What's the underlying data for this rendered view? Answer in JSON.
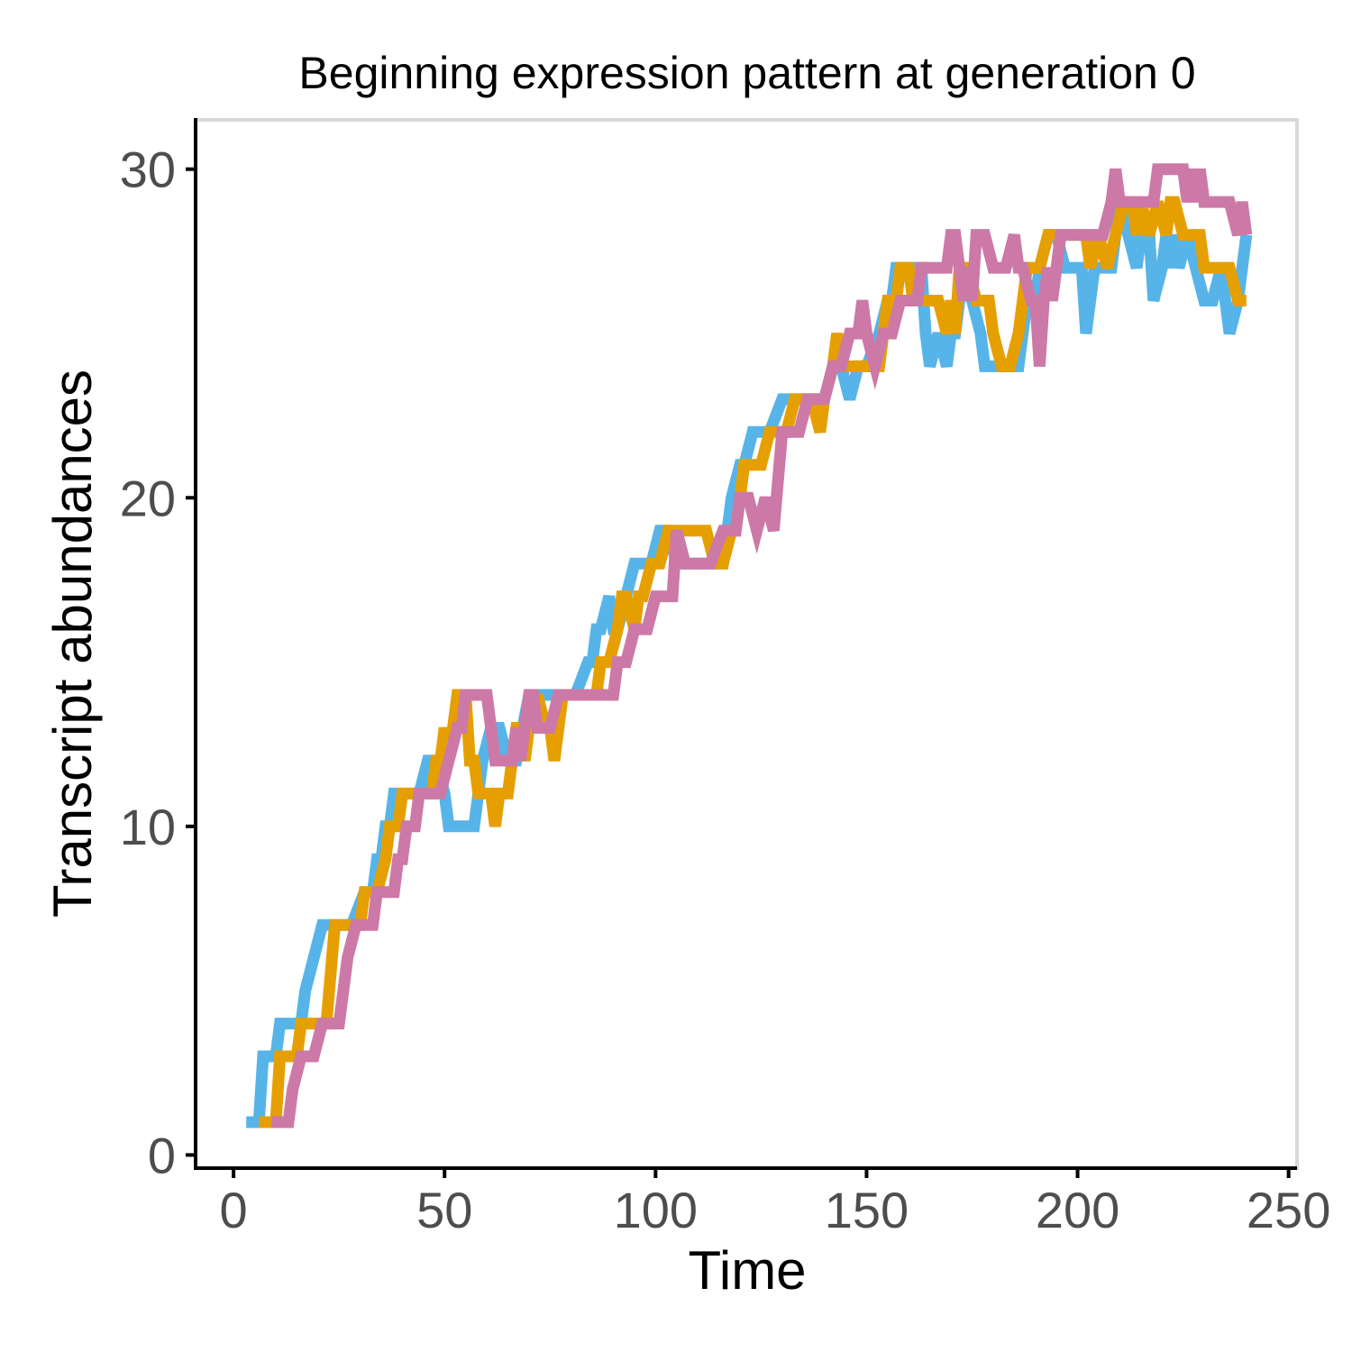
{
  "chart_data": {
    "type": "line",
    "title": "Beginning expression pattern at generation 0",
    "xlabel": "Time",
    "ylabel": "Transcript abundances",
    "xlim": [
      -9,
      252
    ],
    "ylim": [
      -0.4,
      31.5
    ],
    "x_ticks": [
      0,
      50,
      100,
      150,
      200,
      250
    ],
    "y_ticks": [
      0,
      10,
      20,
      30
    ],
    "x_tick_labels": [
      "0",
      "50",
      "100",
      "150",
      "200",
      "250"
    ],
    "y_tick_labels": [
      "0",
      "10",
      "20",
      "30"
    ],
    "grid": false,
    "legend": "none",
    "colors": {
      "series_1": "#56b4e9",
      "series_2": "#e69f00",
      "series_3": "#cc79a7",
      "axis_line": "#000000",
      "panel_border": "#d9d9d9",
      "tick_label": "#4d4d4d"
    },
    "series": [
      {
        "color": "#56b4e9",
        "x": [
          3,
          6,
          7,
          10,
          11,
          14,
          16,
          17,
          19,
          21,
          24,
          27,
          28,
          31,
          32,
          33,
          34,
          35,
          36,
          37,
          38,
          40,
          42,
          44,
          46,
          47,
          48,
          50,
          51,
          53,
          54,
          55,
          57,
          59,
          61,
          63,
          65,
          67,
          70,
          71,
          74,
          75,
          78,
          81,
          84,
          85,
          86,
          87,
          89,
          90,
          91,
          93,
          95,
          97,
          98,
          99,
          101,
          103,
          105,
          107,
          109,
          111,
          114,
          116,
          117,
          118,
          120,
          121,
          123,
          125,
          127,
          130,
          131,
          133,
          137,
          140,
          142,
          144,
          146,
          148,
          150,
          153,
          155,
          156,
          157,
          158,
          161,
          162,
          163,
          164,
          165,
          167,
          169,
          170,
          171,
          173,
          175,
          177,
          178,
          180,
          183,
          186,
          188,
          190,
          191,
          193,
          195,
          197,
          198,
          201,
          202,
          204,
          205,
          208,
          210,
          212,
          214,
          215,
          217,
          218,
          220,
          221,
          222,
          223,
          224,
          226,
          228,
          230,
          232,
          234,
          236,
          238,
          240
        ],
        "y": [
          1,
          1,
          3,
          3,
          4,
          4,
          4,
          5,
          6,
          7,
          7,
          7,
          7,
          8,
          8,
          8,
          9,
          9,
          10,
          10,
          11,
          11,
          11,
          11,
          12,
          12,
          12,
          11,
          10,
          10,
          10,
          10,
          10,
          12,
          13,
          13,
          12,
          12,
          14,
          14,
          14,
          14,
          14,
          14,
          15,
          15,
          16,
          16,
          17,
          16,
          16,
          17,
          18,
          18,
          18,
          18,
          19,
          19,
          18,
          18,
          18,
          18,
          18,
          18,
          19,
          20,
          21,
          21,
          22,
          22,
          22,
          23,
          23,
          23,
          23,
          23,
          24,
          24,
          23,
          24,
          24,
          25,
          26,
          26,
          27,
          27,
          27,
          27,
          27,
          25,
          24,
          25,
          24,
          25,
          25,
          27,
          26,
          25,
          24,
          24,
          24,
          24,
          26,
          26,
          27,
          28,
          28,
          27,
          27,
          27,
          25,
          27,
          27,
          27,
          29,
          28,
          27,
          28,
          28,
          26,
          27,
          28,
          27,
          28,
          27,
          28,
          27,
          26,
          26,
          27,
          25,
          26,
          28
        ]
      },
      {
        "color": "#e69f00",
        "x": [
          6,
          9,
          10,
          11,
          14,
          15,
          16,
          19,
          22,
          24,
          27,
          30,
          31,
          32,
          34,
          36,
          37,
          38,
          39,
          40,
          41,
          43,
          44,
          47,
          48,
          49,
          50,
          51,
          52,
          53,
          55,
          56,
          57,
          58,
          60,
          61,
          62,
          63,
          64,
          65,
          66,
          67,
          68,
          69,
          70,
          72,
          74,
          75,
          76,
          77,
          78,
          80,
          83,
          86,
          87,
          89,
          91,
          92,
          93,
          95,
          96,
          97,
          99,
          101,
          103,
          105,
          107,
          109,
          111,
          112,
          114,
          116,
          118,
          119,
          120,
          121,
          123,
          125,
          127,
          128,
          130,
          131,
          133,
          135,
          136,
          137,
          139,
          140,
          142,
          143,
          144,
          145,
          147,
          149,
          150,
          153,
          155,
          157,
          158,
          160,
          161,
          162,
          165,
          167,
          169,
          170,
          171,
          172,
          174,
          176,
          178,
          179,
          180,
          182,
          184,
          186,
          188,
          191,
          193,
          196,
          199,
          202,
          203,
          205,
          207,
          209,
          211,
          213,
          214,
          215,
          217,
          219,
          221,
          222,
          223,
          225,
          227,
          229,
          230,
          232,
          234,
          236,
          238,
          240
        ],
        "y": [
          1,
          1,
          1,
          3,
          3,
          3,
          4,
          4,
          4,
          7,
          7,
          7,
          8,
          8,
          8,
          9,
          10,
          10,
          10,
          11,
          11,
          11,
          11,
          11,
          12,
          12,
          13,
          12,
          13,
          14,
          14,
          12,
          12,
          11,
          11,
          11,
          10,
          11,
          11,
          11,
          12,
          13,
          13,
          12,
          13,
          14,
          13,
          13,
          12,
          13,
          14,
          14,
          14,
          14,
          15,
          15,
          16,
          17,
          17,
          16,
          17,
          17,
          18,
          18,
          19,
          19,
          19,
          19,
          19,
          19,
          18,
          18,
          19,
          19,
          20,
          21,
          21,
          21,
          22,
          22,
          22,
          22,
          23,
          23,
          23,
          23,
          22,
          23,
          24,
          25,
          24,
          24,
          24,
          24,
          24,
          24,
          26,
          26,
          27,
          27,
          26,
          26,
          26,
          26,
          25,
          26,
          25,
          27,
          27,
          26,
          26,
          26,
          25,
          24,
          24,
          25,
          27,
          27,
          28,
          28,
          28,
          28,
          27,
          28,
          27,
          28,
          29,
          29,
          28,
          29,
          28,
          29,
          28,
          29,
          29,
          28,
          28,
          28,
          27,
          27,
          27,
          27,
          26,
          26
        ]
      },
      {
        "color": "#cc79a7",
        "x": [
          9,
          12,
          13,
          14,
          16,
          18,
          19,
          21,
          23,
          25,
          27,
          29,
          32,
          33,
          34,
          36,
          38,
          39,
          40,
          41,
          43,
          44,
          46,
          48,
          49,
          51,
          53,
          54,
          55,
          57,
          60,
          62,
          63,
          64,
          66,
          67,
          68,
          69,
          70,
          71,
          72,
          73,
          74,
          75,
          77,
          79,
          81,
          83,
          87,
          90,
          91,
          93,
          95,
          98,
          100,
          102,
          104,
          105,
          107,
          109,
          111,
          113,
          116,
          117,
          119,
          120,
          122,
          124,
          126,
          128,
          130,
          132,
          134,
          136,
          138,
          140,
          142,
          144,
          146,
          148,
          149,
          150,
          152,
          154,
          156,
          158,
          160,
          162,
          163,
          165,
          167,
          169,
          170,
          171,
          172,
          173,
          174,
          175,
          176,
          178,
          180,
          181,
          183,
          185,
          186,
          187,
          189,
          190,
          191,
          192,
          193,
          194,
          196,
          198,
          200,
          202,
          204,
          206,
          208,
          209,
          210,
          211,
          212,
          214,
          216,
          218,
          219,
          221,
          223,
          225,
          226,
          227,
          228,
          229,
          230,
          232,
          234,
          236,
          238,
          239,
          240
        ],
        "y": [
          1,
          1,
          1,
          2,
          3,
          3,
          3,
          4,
          4,
          4,
          6,
          7,
          7,
          7,
          8,
          8,
          8,
          9,
          9,
          10,
          10,
          11,
          11,
          11,
          11,
          12,
          13,
          13,
          14,
          14,
          14,
          12,
          12,
          12,
          12,
          13,
          12,
          13,
          14,
          14,
          13,
          13,
          13,
          13,
          14,
          14,
          14,
          14,
          14,
          14,
          15,
          15,
          16,
          16,
          17,
          17,
          17,
          19,
          18,
          18,
          18,
          18,
          19,
          19,
          19,
          20,
          20,
          19,
          20,
          19,
          22,
          22,
          22,
          23,
          23,
          23,
          24,
          24,
          25,
          25,
          26,
          25,
          24,
          25,
          25,
          26,
          26,
          26,
          27,
          27,
          27,
          27,
          28,
          28,
          27,
          26,
          27,
          26,
          28,
          28,
          27,
          27,
          27,
          28,
          27,
          27,
          26,
          26,
          24,
          26,
          27,
          26,
          28,
          28,
          28,
          28,
          28,
          28,
          29,
          30,
          29,
          29,
          29,
          29,
          29,
          29,
          30,
          30,
          30,
          30,
          29,
          30,
          29,
          30,
          29,
          29,
          29,
          29,
          28,
          29,
          28
        ]
      }
    ]
  }
}
